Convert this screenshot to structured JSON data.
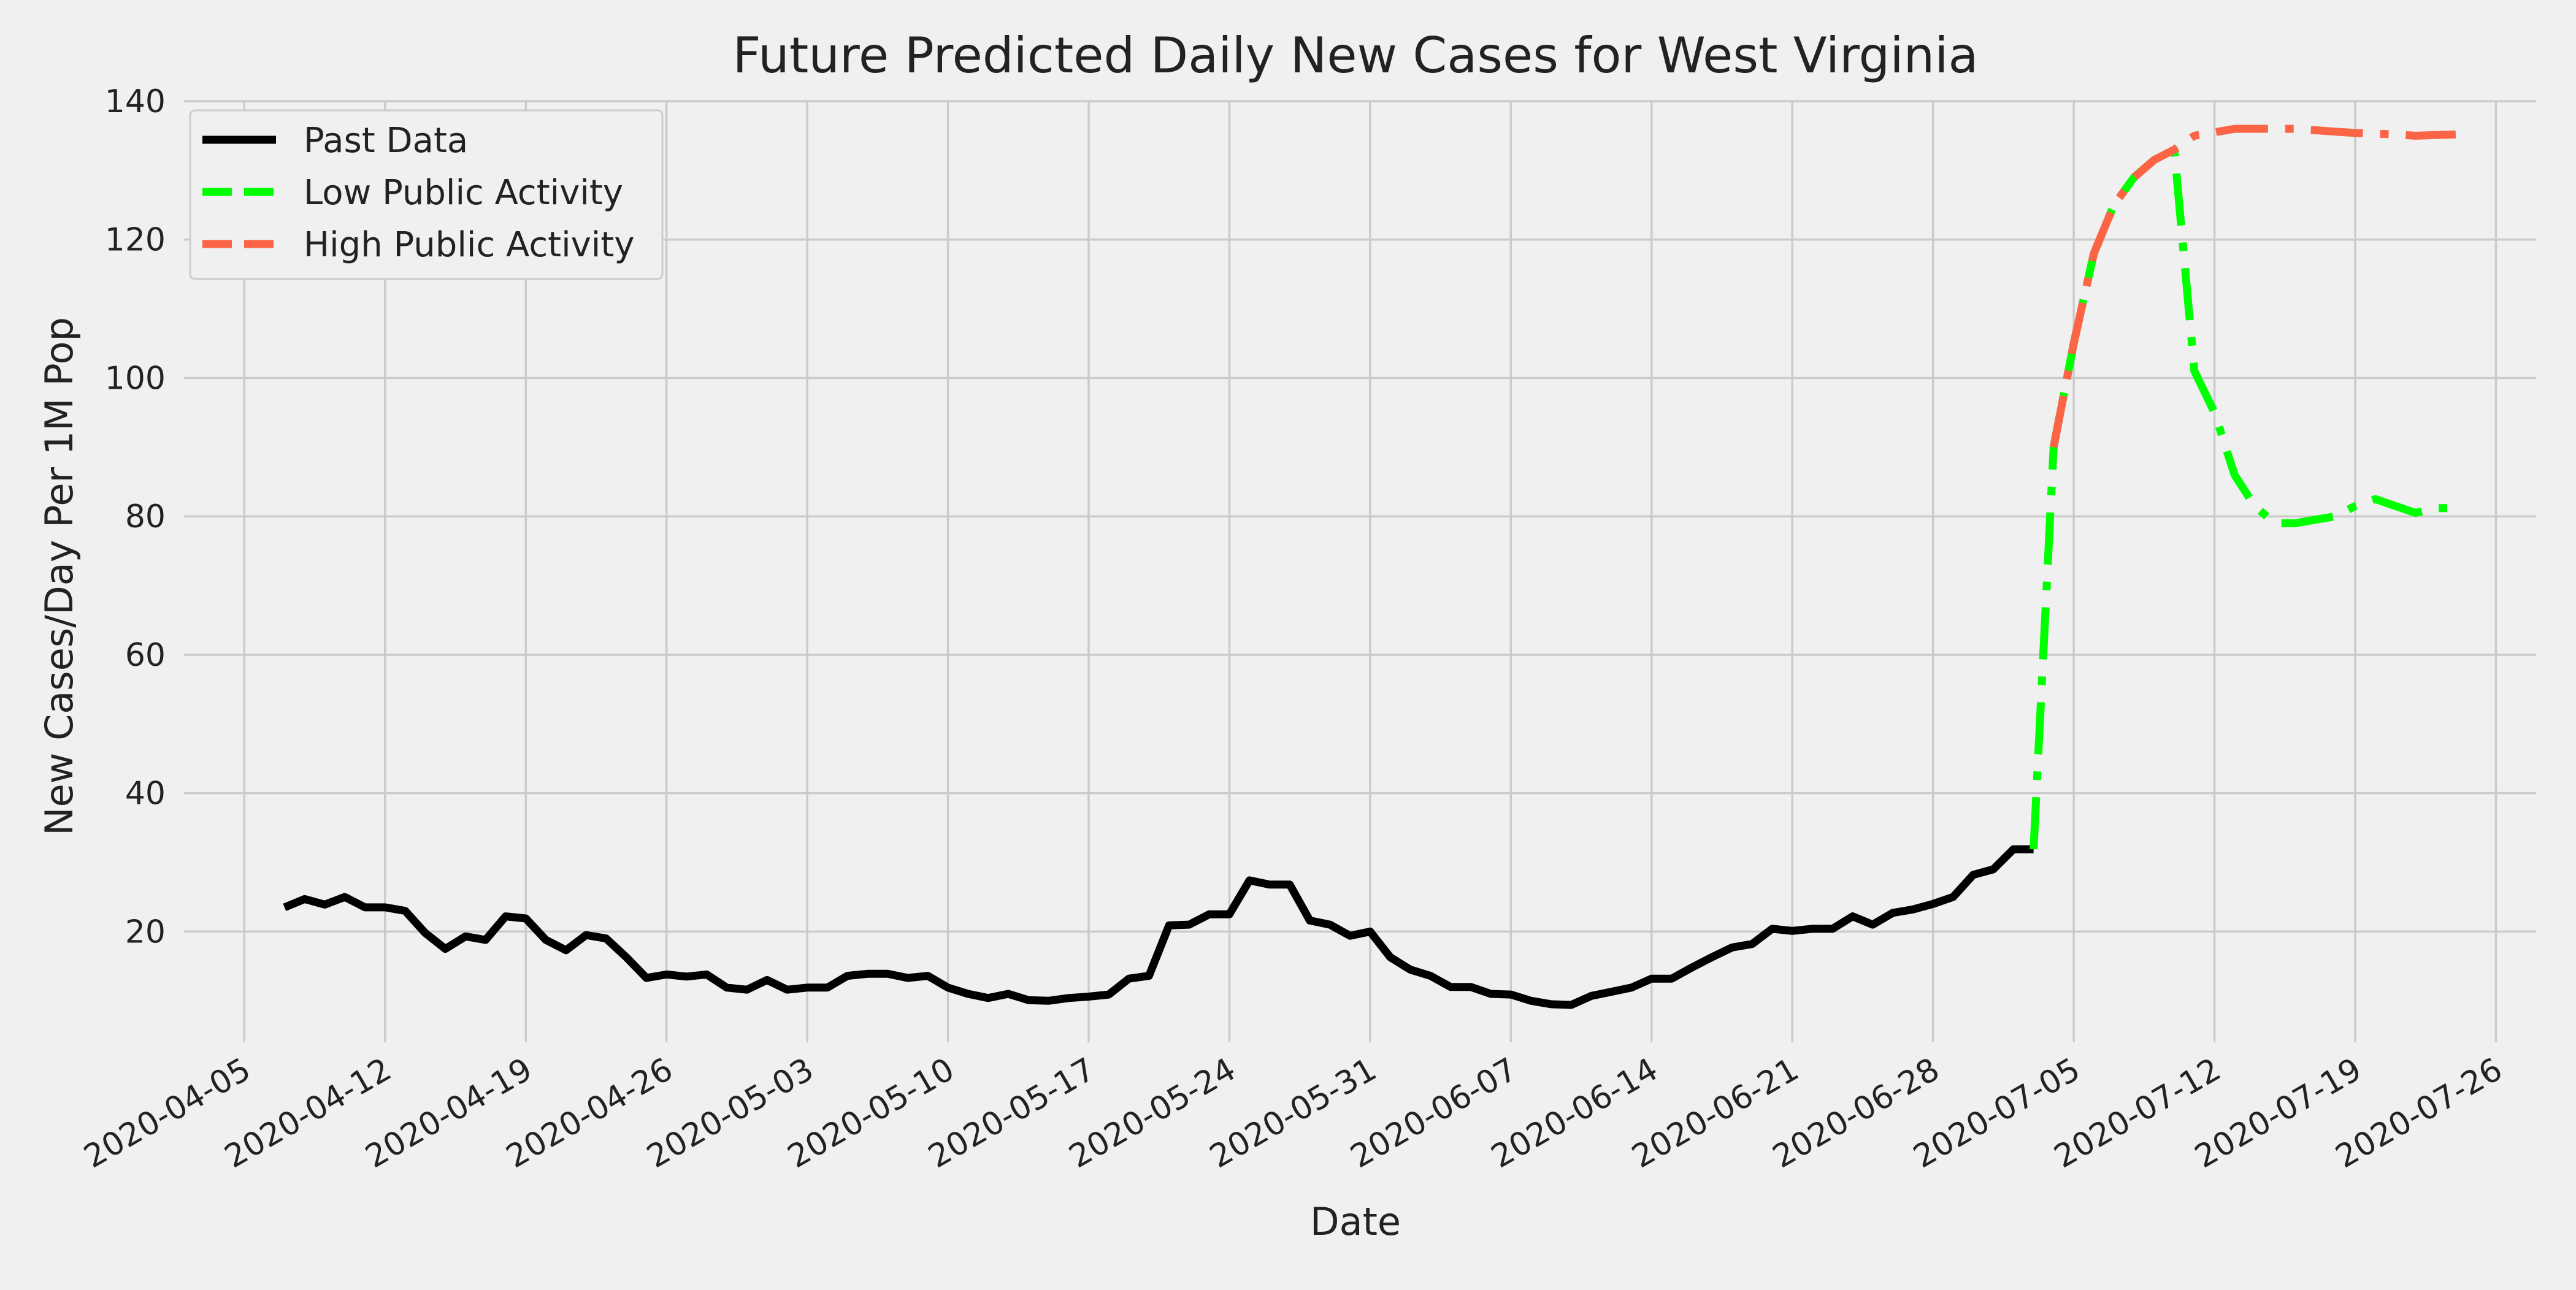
{
  "chart_data": {
    "type": "line",
    "title": "Future Predicted Daily New Cases for West Virginia",
    "xlabel": "Date",
    "ylabel": "New Cases/Day Per 1M Pop",
    "x_axis_type": "date",
    "xlim": [
      "2020-04-02",
      "2020-07-28"
    ],
    "ylim": [
      4,
      140
    ],
    "x_ticks": [
      "2020-04-05",
      "2020-04-12",
      "2020-04-19",
      "2020-04-26",
      "2020-05-03",
      "2020-05-10",
      "2020-05-17",
      "2020-05-24",
      "2020-05-31",
      "2020-06-07",
      "2020-06-14",
      "2020-06-21",
      "2020-06-28",
      "2020-07-05",
      "2020-07-12",
      "2020-07-19",
      "2020-07-26"
    ],
    "y_ticks": [
      20,
      40,
      60,
      80,
      100,
      120,
      140
    ],
    "grid": true,
    "legend_position": "top-left",
    "series": [
      {
        "name": "Past Data",
        "color": "#000000",
        "line_style": "solid",
        "x": [
          "2020-04-07",
          "2020-04-08",
          "2020-04-09",
          "2020-04-10",
          "2020-04-11",
          "2020-04-12",
          "2020-04-13",
          "2020-04-14",
          "2020-04-15",
          "2020-04-16",
          "2020-04-17",
          "2020-04-18",
          "2020-04-19",
          "2020-04-20",
          "2020-04-21",
          "2020-04-22",
          "2020-04-23",
          "2020-04-24",
          "2020-04-25",
          "2020-04-26",
          "2020-04-27",
          "2020-04-28",
          "2020-04-29",
          "2020-04-30",
          "2020-05-01",
          "2020-05-02",
          "2020-05-03",
          "2020-05-04",
          "2020-05-05",
          "2020-05-06",
          "2020-05-07",
          "2020-05-08",
          "2020-05-09",
          "2020-05-10",
          "2020-05-11",
          "2020-05-12",
          "2020-05-13",
          "2020-05-14",
          "2020-05-15",
          "2020-05-16",
          "2020-05-17",
          "2020-05-18",
          "2020-05-19",
          "2020-05-20",
          "2020-05-21",
          "2020-05-22",
          "2020-05-23",
          "2020-05-24",
          "2020-05-25",
          "2020-05-26",
          "2020-05-27",
          "2020-05-28",
          "2020-05-29",
          "2020-05-30",
          "2020-05-31",
          "2020-06-01",
          "2020-06-02",
          "2020-06-03",
          "2020-06-04",
          "2020-06-05",
          "2020-06-06",
          "2020-06-07",
          "2020-06-08",
          "2020-06-09",
          "2020-06-10",
          "2020-06-11",
          "2020-06-12",
          "2020-06-13",
          "2020-06-14",
          "2020-06-15",
          "2020-06-16",
          "2020-06-17",
          "2020-06-18",
          "2020-06-19",
          "2020-06-20",
          "2020-06-21",
          "2020-06-22",
          "2020-06-23",
          "2020-06-24",
          "2020-06-25",
          "2020-06-26",
          "2020-06-27",
          "2020-06-28",
          "2020-06-29",
          "2020-06-30",
          "2020-07-01",
          "2020-07-02",
          "2020-07-03"
        ],
        "y": [
          23.5,
          24.7,
          23.9,
          25.0,
          23.5,
          23.5,
          23.0,
          19.8,
          17.5,
          19.3,
          18.8,
          22.2,
          21.9,
          18.8,
          17.3,
          19.5,
          19.0,
          16.3,
          13.3,
          13.8,
          13.5,
          13.8,
          11.9,
          11.6,
          13.0,
          11.6,
          11.9,
          11.9,
          13.6,
          13.9,
          13.9,
          13.3,
          13.6,
          11.9,
          11.0,
          10.4,
          11.0,
          10.1,
          10.0,
          10.4,
          10.6,
          10.9,
          13.2,
          13.6,
          20.9,
          21.0,
          22.5,
          22.5,
          27.4,
          26.8,
          26.8,
          21.6,
          21.0,
          19.4,
          20.0,
          16.3,
          14.5,
          13.6,
          12.0,
          12.0,
          11.0,
          10.9,
          10.0,
          9.5,
          9.4,
          10.7,
          11.3,
          11.9,
          13.2,
          13.2,
          14.8,
          16.3,
          17.7,
          18.2,
          20.4,
          20.1,
          20.4,
          20.4,
          22.2,
          21.0,
          22.7,
          23.2,
          24.0,
          25.0,
          28.2,
          29.0,
          31.9,
          31.9
        ]
      },
      {
        "name": "Low Public Activity",
        "color": "#00ff00",
        "line_style": "dashdot",
        "x": [
          "2020-07-03",
          "2020-07-04",
          "2020-07-05",
          "2020-07-06",
          "2020-07-07",
          "2020-07-08",
          "2020-07-09",
          "2020-07-10",
          "2020-07-11",
          "2020-07-12",
          "2020-07-13",
          "2020-07-14",
          "2020-07-15",
          "2020-07-16",
          "2020-07-17",
          "2020-07-18",
          "2020-07-19",
          "2020-07-20",
          "2020-07-21",
          "2020-07-22",
          "2020-07-23",
          "2020-07-24"
        ],
        "y": [
          31.9,
          90.0,
          105.0,
          118.0,
          125.0,
          129.0,
          131.5,
          133.0,
          101.0,
          95.0,
          86.0,
          81.5,
          79.0,
          79.0,
          79.5,
          80.0,
          81.5,
          82.5,
          81.5,
          80.5,
          81.2,
          81.2
        ]
      },
      {
        "name": "High Public Activity",
        "color": "#fc6446",
        "line_style": "dashdot",
        "x": [
          "2020-07-04",
          "2020-07-05",
          "2020-07-06",
          "2020-07-07",
          "2020-07-08",
          "2020-07-09",
          "2020-07-10",
          "2020-07-11",
          "2020-07-12",
          "2020-07-13",
          "2020-07-14",
          "2020-07-15",
          "2020-07-16",
          "2020-07-17",
          "2020-07-18",
          "2020-07-19",
          "2020-07-20",
          "2020-07-21",
          "2020-07-22",
          "2020-07-23",
          "2020-07-24"
        ],
        "y": [
          90.0,
          105.0,
          118.0,
          125.0,
          129.0,
          131.5,
          133.0,
          135.0,
          135.5,
          136.0,
          136.0,
          136.0,
          136.0,
          135.8,
          135.6,
          135.4,
          135.3,
          135.2,
          135.0,
          135.1,
          135.2
        ]
      }
    ]
  }
}
